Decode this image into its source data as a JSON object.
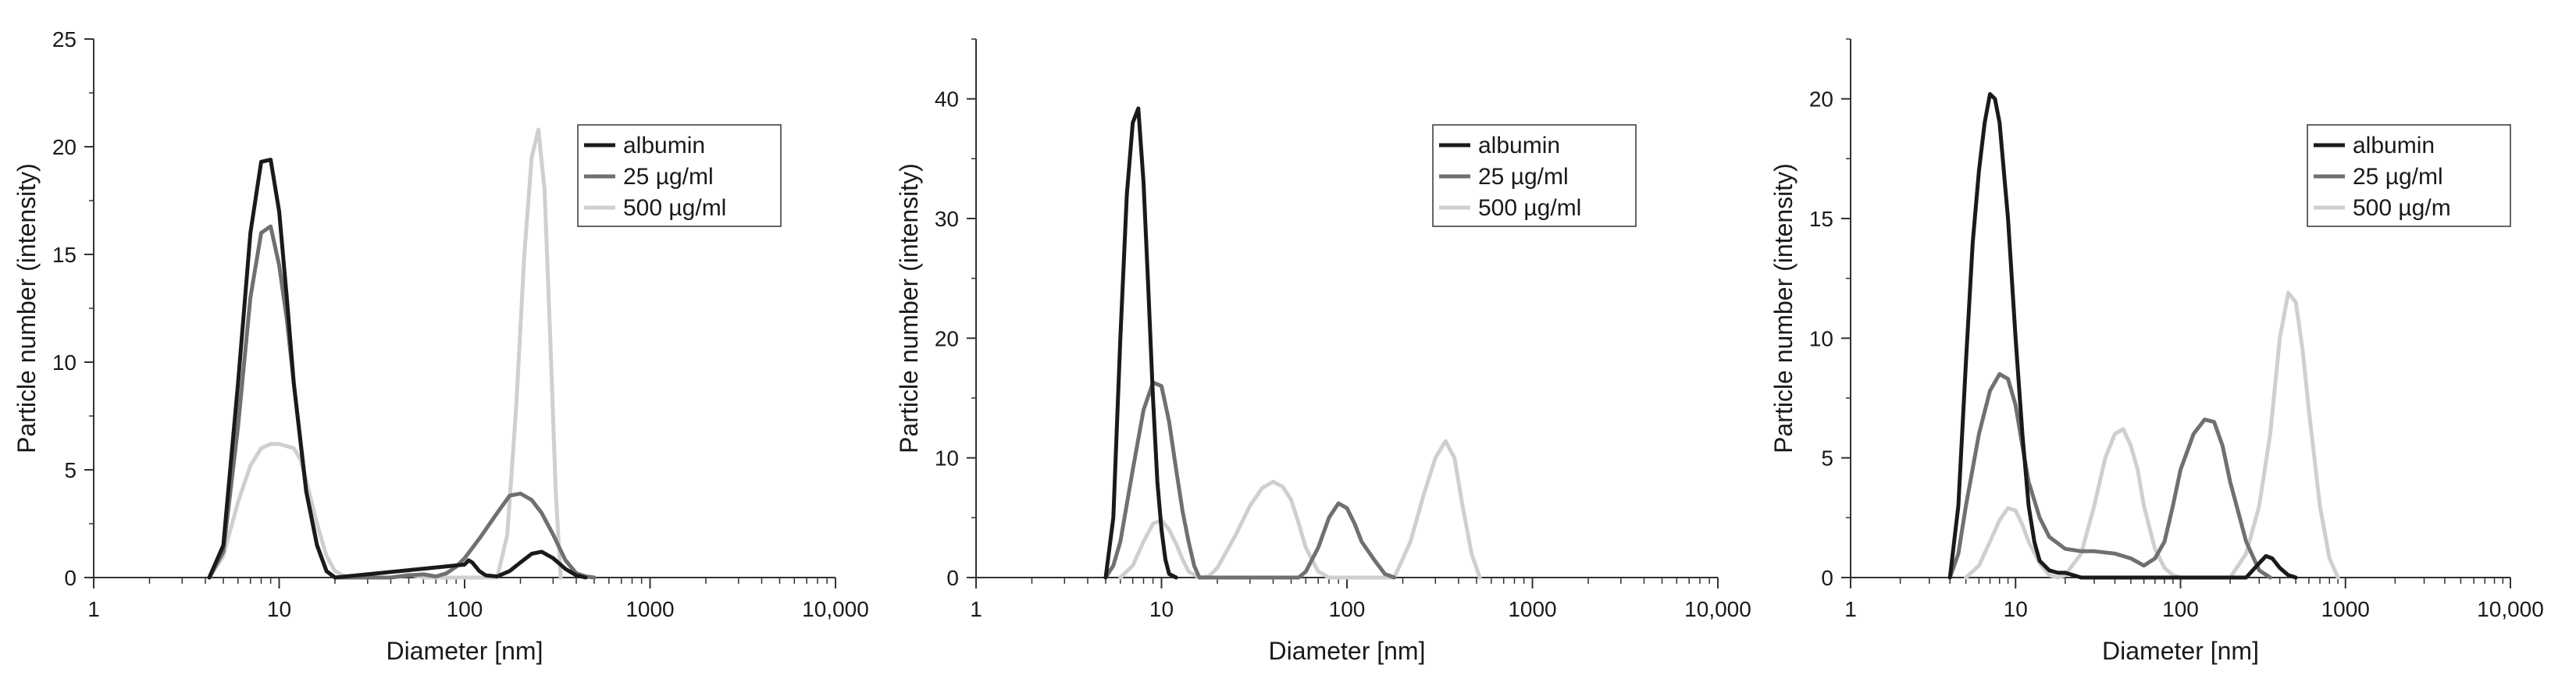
{
  "chart_data": [
    {
      "type": "line",
      "x_scale": "log",
      "xlim": [
        1,
        10000
      ],
      "ylim": [
        0,
        25
      ],
      "xlabel": "Diameter [nm]",
      "ylabel": "Particle number (intensity)",
      "x_tick_labels": [
        "1",
        "10",
        "100",
        "1000",
        "10,000"
      ],
      "y_ticks": [
        0,
        5,
        10,
        15,
        20,
        25
      ],
      "legend_position": "top-right",
      "series": [
        {
          "name": "albumin",
          "color": "#1a1a1a",
          "x": [
            4.2,
            5,
            6,
            7,
            8,
            9,
            10,
            11,
            12,
            14,
            16,
            18,
            20,
            100,
            105,
            110,
            120,
            130,
            150,
            175,
            200,
            230,
            260,
            300,
            350,
            400,
            450
          ],
          "y": [
            0,
            1.5,
            9,
            16,
            19.3,
            19.4,
            17,
            13,
            9,
            4,
            1.5,
            0.3,
            0,
            0.6,
            0.8,
            0.7,
            0.3,
            0.1,
            0.05,
            0.3,
            0.7,
            1.1,
            1.2,
            0.9,
            0.4,
            0.1,
            0
          ]
        },
        {
          "name": "25 µg/ml",
          "color": "#707070",
          "x": [
            4.2,
            5,
            6,
            7,
            8,
            9,
            10,
            11,
            12,
            14,
            16,
            18,
            20,
            40,
            50,
            60,
            70,
            80,
            90,
            100,
            120,
            150,
            175,
            200,
            230,
            260,
            300,
            350,
            400,
            450,
            500
          ],
          "y": [
            0,
            1.2,
            7,
            13,
            16,
            16.3,
            14.5,
            12,
            9,
            4,
            1.5,
            0.3,
            0,
            0,
            0.1,
            0.15,
            0.05,
            0.2,
            0.5,
            0.9,
            1.8,
            3,
            3.8,
            3.9,
            3.6,
            3,
            2,
            0.8,
            0.2,
            0.05,
            0
          ]
        },
        {
          "name": "500 µg/ml",
          "color": "#cfcfcf",
          "x": [
            4.2,
            5,
            6,
            7,
            8,
            9,
            10,
            11,
            12,
            13,
            14,
            16,
            18,
            20,
            22,
            25,
            40,
            50,
            60,
            150,
            170,
            190,
            210,
            230,
            250,
            270,
            290,
            310,
            330
          ],
          "y": [
            0,
            1,
            3.5,
            5.2,
            6,
            6.2,
            6.2,
            6.1,
            6,
            5.5,
            4.5,
            2.5,
            1,
            0.3,
            0.1,
            0,
            0,
            0.15,
            0,
            0,
            2,
            8,
            15,
            19.5,
            20.8,
            18,
            11,
            4,
            0
          ]
        }
      ]
    },
    {
      "type": "line",
      "x_scale": "log",
      "xlim": [
        1,
        10000
      ],
      "ylim": [
        0,
        45
      ],
      "xlabel": "Diameter [nm]",
      "ylabel": "Particle number (intensity)",
      "x_tick_labels": [
        "1",
        "10",
        "100",
        "1000",
        "10,000"
      ],
      "y_ticks": [
        0,
        10,
        20,
        30,
        40
      ],
      "legend_position": "top-right",
      "series": [
        {
          "name": "albumin",
          "color": "#1a1a1a",
          "x": [
            5,
            5.5,
            6,
            6.5,
            7,
            7.5,
            8,
            8.5,
            9,
            9.5,
            10,
            10.5,
            11,
            12
          ],
          "y": [
            0,
            5,
            20,
            32,
            38,
            39.2,
            33,
            24,
            15,
            8,
            4,
            1.5,
            0.3,
            0
          ]
        },
        {
          "name": "25 µg/ml",
          "color": "#707070",
          "x": [
            5,
            5.5,
            6,
            7,
            8,
            9,
            10,
            11,
            12,
            13,
            14,
            15,
            16,
            55,
            60,
            70,
            80,
            90,
            100,
            110,
            120,
            140,
            160,
            180
          ],
          "y": [
            0,
            1,
            3,
            9,
            14,
            16.3,
            16,
            13,
            9,
            5.5,
            3,
            1,
            0,
            0,
            0.5,
            2.5,
            5,
            6.2,
            5.8,
            4.5,
            3,
            1.5,
            0.3,
            0
          ]
        },
        {
          "name": "500 µg/ml",
          "color": "#cfcfcf",
          "x": [
            6,
            7,
            8,
            9,
            10,
            11,
            12,
            13,
            14,
            16,
            18,
            20,
            25,
            30,
            35,
            40,
            45,
            50,
            55,
            60,
            70,
            80,
            180,
            220,
            260,
            300,
            340,
            380,
            420,
            470,
            520
          ],
          "y": [
            0,
            1,
            3,
            4.5,
            4.8,
            4,
            2.8,
            1.5,
            0.5,
            0,
            0.1,
            0.8,
            3.5,
            6,
            7.5,
            8,
            7.6,
            6.5,
            4.5,
            2.5,
            0.5,
            0,
            0,
            3,
            7,
            10,
            11.4,
            10,
            6,
            2,
            0
          ]
        }
      ]
    },
    {
      "type": "line",
      "x_scale": "log",
      "xlim": [
        1,
        10000
      ],
      "ylim": [
        0,
        22.5
      ],
      "xlabel": "Diameter [nm]",
      "ylabel": "Particle number (intensity)",
      "x_tick_labels": [
        "1",
        "10",
        "100",
        "1000",
        "10,000"
      ],
      "y_ticks": [
        0,
        5,
        10,
        15,
        20
      ],
      "legend_position": "top-right",
      "series": [
        {
          "name": "albumin",
          "color": "#1a1a1a",
          "x": [
            4,
            4.5,
            5,
            5.5,
            6,
            6.5,
            7,
            7.5,
            8,
            9,
            10,
            11,
            12,
            13,
            14,
            16,
            18,
            20,
            25,
            30,
            250,
            300,
            330,
            360,
            400,
            450,
            500
          ],
          "y": [
            0,
            3,
            9,
            14,
            17,
            19,
            20.2,
            20,
            19,
            15,
            10,
            6,
            3,
            1.5,
            0.7,
            0.3,
            0.2,
            0.2,
            0,
            0,
            0,
            0.6,
            0.9,
            0.8,
            0.4,
            0.1,
            0
          ]
        },
        {
          "name": "25 µg/ml",
          "color": "#707070",
          "x": [
            4,
            4.5,
            5,
            6,
            7,
            8,
            9,
            10,
            11,
            12,
            14,
            16,
            20,
            25,
            30,
            40,
            50,
            60,
            70,
            80,
            90,
            100,
            120,
            140,
            160,
            180,
            200,
            250,
            300,
            350
          ],
          "y": [
            0,
            1,
            3,
            6,
            7.8,
            8.5,
            8.3,
            7.2,
            5.5,
            4,
            2.5,
            1.7,
            1.2,
            1.1,
            1.1,
            1,
            0.8,
            0.5,
            0.8,
            1.5,
            3,
            4.5,
            6,
            6.6,
            6.5,
            5.5,
            4,
            1.5,
            0.3,
            0
          ]
        },
        {
          "name": "500 µg/m",
          "color": "#cfcfcf",
          "x": [
            5,
            6,
            7,
            8,
            9,
            10,
            11,
            12,
            14,
            16,
            18,
            20,
            25,
            30,
            35,
            40,
            45,
            50,
            55,
            60,
            70,
            80,
            90,
            100,
            200,
            250,
            300,
            350,
            400,
            450,
            500,
            550,
            600,
            700,
            800,
            900
          ],
          "y": [
            0,
            0.5,
            1.5,
            2.4,
            2.9,
            2.8,
            2.2,
            1.5,
            0.6,
            0.1,
            0,
            0.1,
            1,
            3,
            5,
            6,
            6.2,
            5.5,
            4.5,
            3,
            1.2,
            0.4,
            0.1,
            0,
            0,
            1,
            3,
            6,
            10,
            11.9,
            11.5,
            9.5,
            7,
            3,
            0.8,
            0
          ]
        }
      ]
    }
  ]
}
